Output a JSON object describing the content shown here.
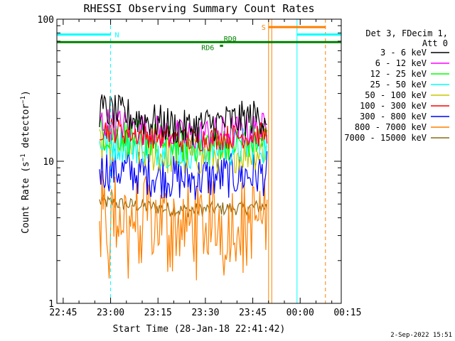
{
  "chart_data": {
    "type": "line",
    "title": "RHESSI Observing Summary Count Rates",
    "xlabel": "Start Time (28-Jan-18 22:41:42)",
    "ylabel": "Count Rate (s⁻¹ detector⁻¹)",
    "ylabel_parts": {
      "main": "Count Rate (s",
      "sup1": "−1",
      "mid": " detector",
      "sup2": "−1",
      "end": ")"
    },
    "y_scale": "log",
    "ylim": [
      1,
      100
    ],
    "y_ticks": [
      {
        "value": 1,
        "label": "1"
      },
      {
        "value": 10,
        "label": "10"
      },
      {
        "value": 100,
        "label": "100"
      }
    ],
    "xlim_min": [
      -17,
      73
    ],
    "x_ticks": [
      {
        "value": -15,
        "label": "22:45"
      },
      {
        "value": 0,
        "label": "23:00"
      },
      {
        "value": 15,
        "label": "23:15"
      },
      {
        "value": 30,
        "label": "23:30"
      },
      {
        "value": 45,
        "label": "23:45"
      },
      {
        "value": 60,
        "label": "00:00"
      },
      {
        "value": 75,
        "label": "00:15"
      }
    ],
    "legend_header": [
      "Det 3, FDecim 1,",
      "Att 0"
    ],
    "legend_placement": "right",
    "series": [
      {
        "name": "3 - 6 keV",
        "color": "#000000",
        "level": [
          23,
          17,
          21
        ],
        "spread": 0.13
      },
      {
        "name": "6 - 12 keV",
        "color": "#ff00ff",
        "level": [
          19,
          15,
          17
        ],
        "spread": 0.12
      },
      {
        "name": "12 - 25 keV",
        "color": "#00ff00",
        "level": [
          16,
          13,
          14
        ],
        "spread": 0.13
      },
      {
        "name": "25 - 50 keV",
        "color": "#00ffff",
        "level": [
          14,
          12,
          13
        ],
        "spread": 0.14
      },
      {
        "name": "50 - 100 keV",
        "color": "#c8c800",
        "level": [
          13,
          10.5,
          12
        ],
        "spread": 0.14
      },
      {
        "name": "100 - 300 keV",
        "color": "#ff0000",
        "level": [
          17,
          14,
          15.5
        ],
        "spread": 0.09
      },
      {
        "name": "300 - 800 keV",
        "color": "#0000ff",
        "level": [
          9,
          7.5,
          8.2
        ],
        "spread": 0.16
      },
      {
        "name": "800 - 7000 keV",
        "color": "#ff8000",
        "level": [
          4.5,
          3.6,
          4.0
        ],
        "spread": 0.3
      },
      {
        "name": "7000 - 15000 keV",
        "color": "#8b6914",
        "level": [
          5.2,
          4.5,
          4.8
        ],
        "spread": 0.05
      }
    ],
    "data_time_range_min": [
      -3.5,
      49.5
    ],
    "annotations": [
      {
        "label": "N",
        "color": "#00ffff",
        "bar_min": [
          -17,
          0
        ],
        "y": 78
      },
      {
        "label": "S",
        "color": "#ff8000",
        "bar_min": [
          50,
          68
        ],
        "y": 88
      },
      {
        "label": "",
        "color": "#00ffff",
        "bar_min": [
          59,
          73
        ],
        "y": 78
      },
      {
        "label": "",
        "color": "#008000",
        "bar_min": [
          -17,
          73
        ],
        "y": 69
      },
      {
        "label": "RD0",
        "color": "#008000",
        "bar_min": [
          34.6,
          35.6
        ],
        "y": 69
      },
      {
        "label": "RD6",
        "color": "#008000",
        "bar_min": [
          34.6,
          35.6
        ],
        "y": 65
      }
    ],
    "vertical_markers": [
      {
        "x": -17,
        "color": "#00ffff",
        "style": "solid"
      },
      {
        "x": 0,
        "color": "#00ffff",
        "style": "dashed"
      },
      {
        "x": 50,
        "color": "#ff8000",
        "style": "solid"
      },
      {
        "x": 51,
        "color": "#ff8000",
        "style": "solid"
      },
      {
        "x": 59,
        "color": "#00ffff",
        "style": "solid"
      },
      {
        "x": 68,
        "color": "#ff8000",
        "style": "dashed"
      },
      {
        "x": 73,
        "color": "#00ffff",
        "style": "dashed"
      }
    ]
  },
  "footer": {
    "date": "2-Sep-2022 15:51"
  }
}
